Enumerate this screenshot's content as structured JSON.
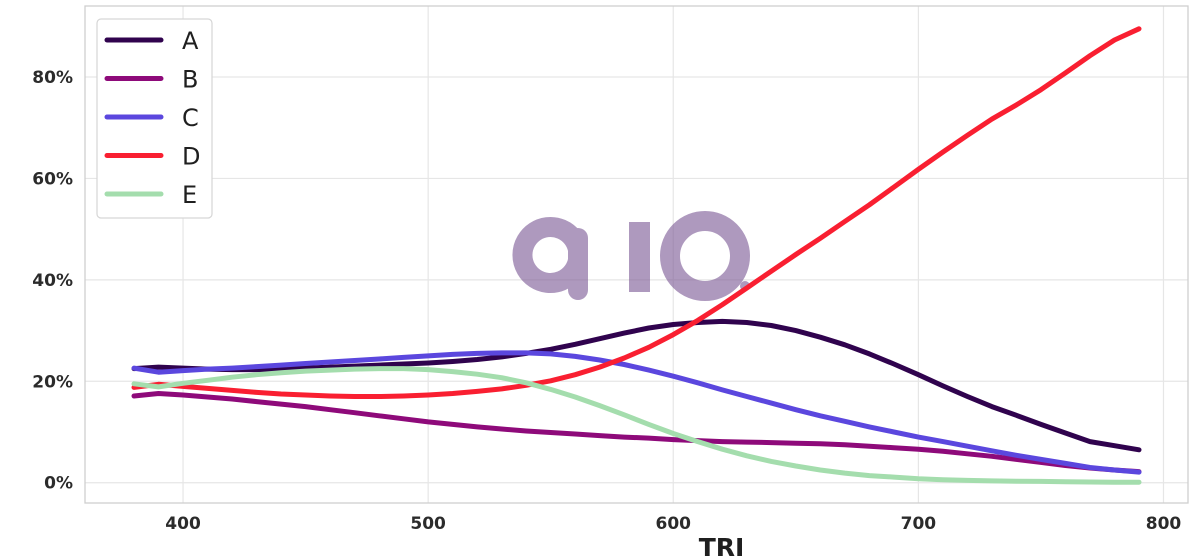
{
  "chart_data": {
    "type": "line",
    "title": "",
    "xlabel": "TRI",
    "ylabel": "",
    "xlim": [
      360,
      810
    ],
    "ylim": [
      -4,
      94
    ],
    "x_ticks": [
      400,
      500,
      600,
      700,
      800
    ],
    "y_ticks": [
      0,
      20,
      40,
      60,
      80
    ],
    "y_tick_format": "percent",
    "grid": true,
    "legend_position": "top-left",
    "x": [
      380,
      390,
      400,
      410,
      420,
      430,
      440,
      450,
      460,
      470,
      480,
      490,
      500,
      510,
      520,
      530,
      540,
      550,
      560,
      570,
      580,
      590,
      600,
      610,
      620,
      630,
      640,
      650,
      660,
      670,
      680,
      690,
      700,
      710,
      720,
      730,
      740,
      750,
      760,
      770,
      780,
      790
    ],
    "series": [
      {
        "name": "A",
        "color": "#30034e",
        "values": [
          22.5,
          22.8,
          22.6,
          22.4,
          22.3,
          22.3,
          22.4,
          22.6,
          22.8,
          23.0,
          23.2,
          23.4,
          23.6,
          23.9,
          24.3,
          24.8,
          25.5,
          26.3,
          27.3,
          28.4,
          29.5,
          30.5,
          31.2,
          31.6,
          31.8,
          31.6,
          31.0,
          30.0,
          28.7,
          27.2,
          25.4,
          23.4,
          21.3,
          19.1,
          17.0,
          15.0,
          13.3,
          11.5,
          9.8,
          8.1,
          7.3,
          6.5
        ]
      },
      {
        "name": "B",
        "color": "#8e0a7a",
        "values": [
          17.1,
          17.6,
          17.3,
          16.9,
          16.5,
          16.0,
          15.5,
          15.0,
          14.4,
          13.8,
          13.2,
          12.6,
          12.0,
          11.5,
          11.0,
          10.6,
          10.2,
          9.9,
          9.6,
          9.3,
          9.0,
          8.8,
          8.5,
          8.3,
          8.1,
          8.0,
          7.9,
          7.8,
          7.7,
          7.5,
          7.2,
          6.9,
          6.6,
          6.2,
          5.7,
          5.2,
          4.6,
          4.0,
          3.4,
          2.9,
          2.5,
          2.2
        ]
      },
      {
        "name": "C",
        "color": "#5b47de",
        "values": [
          22.6,
          21.8,
          22.1,
          22.4,
          22.6,
          22.9,
          23.2,
          23.5,
          23.8,
          24.1,
          24.4,
          24.7,
          25.0,
          25.3,
          25.5,
          25.6,
          25.6,
          25.4,
          24.9,
          24.2,
          23.3,
          22.2,
          21.0,
          19.7,
          18.3,
          17.0,
          15.7,
          14.4,
          13.2,
          12.1,
          11.0,
          10.0,
          9.0,
          8.1,
          7.2,
          6.3,
          5.4,
          4.6,
          3.8,
          3.0,
          2.5,
          2.1
        ]
      },
      {
        "name": "D",
        "color": "#f91f31",
        "values": [
          18.8,
          19.4,
          19.0,
          18.6,
          18.2,
          17.8,
          17.5,
          17.3,
          17.1,
          17.0,
          17.0,
          17.1,
          17.3,
          17.6,
          18.0,
          18.5,
          19.2,
          20.1,
          21.3,
          22.8,
          24.6,
          26.7,
          29.2,
          32.0,
          35.1,
          38.4,
          41.7,
          45.0,
          48.2,
          51.5,
          54.8,
          58.3,
          61.8,
          65.2,
          68.5,
          71.7,
          74.5,
          77.5,
          80.8,
          84.2,
          87.3,
          89.5
        ]
      },
      {
        "name": "E",
        "color": "#a4ddad",
        "values": [
          19.5,
          18.9,
          19.6,
          20.2,
          20.8,
          21.3,
          21.7,
          22.0,
          22.2,
          22.4,
          22.5,
          22.5,
          22.3,
          21.9,
          21.4,
          20.7,
          19.7,
          18.4,
          16.9,
          15.2,
          13.4,
          11.5,
          9.7,
          8.1,
          6.6,
          5.3,
          4.2,
          3.3,
          2.5,
          1.9,
          1.4,
          1.1,
          0.8,
          0.6,
          0.45,
          0.35,
          0.3,
          0.25,
          0.2,
          0.15,
          0.1,
          0.1
        ]
      }
    ]
  },
  "watermark": {
    "text": "aio",
    "color": "#7e5c97"
  }
}
